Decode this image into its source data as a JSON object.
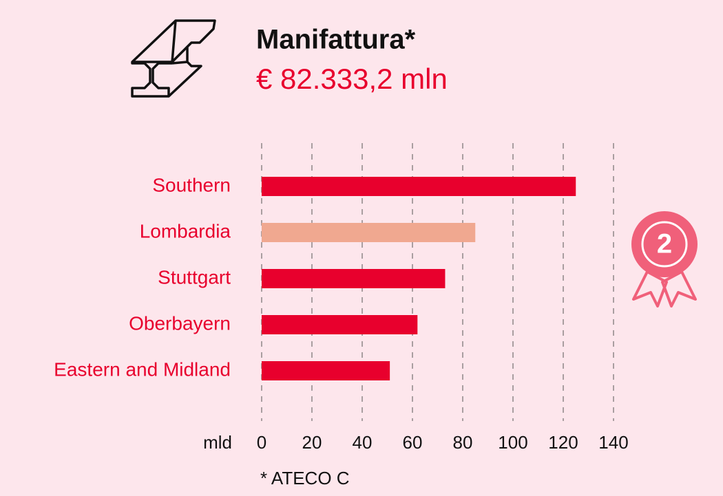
{
  "chart_data": {
    "type": "bar",
    "orientation": "horizontal",
    "title": "Manifattura*",
    "subtitle": "€ 82.333,2 mln",
    "categories": [
      "Southern",
      "Lombardia",
      "Stuttgart",
      "Oberbayern",
      "Eastern and Midland"
    ],
    "values": [
      125,
      85,
      73,
      62,
      51
    ],
    "colors": [
      "#e8002d",
      "#f0a890",
      "#e8002d",
      "#e8002d",
      "#e8002d"
    ],
    "xlabel": "mld",
    "xlim": [
      0,
      140
    ],
    "xticks": [
      0,
      20,
      40,
      60,
      80,
      100,
      120,
      140
    ],
    "grid": true,
    "rank": "2",
    "footnote": "* ATECO C"
  }
}
